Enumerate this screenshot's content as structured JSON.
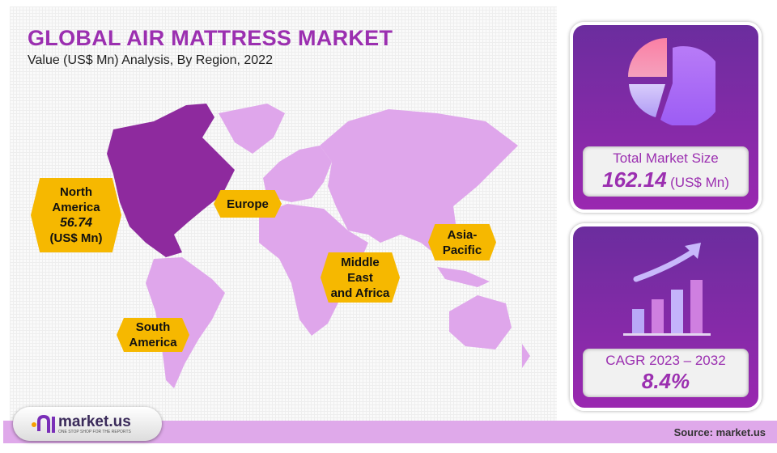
{
  "header": {
    "title": "GLOBAL AIR MATTRESS MARKET",
    "subtitle": "Value (US$ Mn) Analysis, By Region, 2022"
  },
  "colors": {
    "highlight_region": "#8e2a9e",
    "other_regions": "#dfa6eb",
    "label_bg": "#f6b800",
    "accent": "#9b2fb0"
  },
  "chart_data": {
    "type": "map",
    "title": "GLOBAL AIR MATTRESS MARKET",
    "subtitle": "Value (US$ Mn) Analysis, By Region, 2022",
    "regions": [
      {
        "name": "North America",
        "value": 56.74,
        "unit": "(US$ Mn)",
        "highlighted": true
      },
      {
        "name": "Europe"
      },
      {
        "name": "Middle East and Africa"
      },
      {
        "name": "Asia-Pacific"
      },
      {
        "name": "South America"
      }
    ]
  },
  "labels": {
    "na": {
      "l1": "North",
      "l2": "America",
      "value": "56.74",
      "unit": "(US$ Mn)"
    },
    "eu": "Europe",
    "mea": {
      "l1": "Middle",
      "l2": "East",
      "l3": "and Africa"
    },
    "apac": {
      "l1": "Asia-",
      "l2": "Pacific"
    },
    "sa": {
      "l1": "South",
      "l2": "America"
    }
  },
  "panels": {
    "market": {
      "icon": "pie-chart-icon",
      "label": "Total Market Size",
      "value": "162.14",
      "unit": "(US$ Mn)"
    },
    "cagr": {
      "icon": "growth-bar-chart-icon",
      "label": "CAGR 2023 – 2032",
      "value": "8.4%"
    }
  },
  "footer": {
    "logo_text": "market.us",
    "logo_tagline": "ONE STOP SHOP FOR THE REPORTS",
    "source": "Source: market.us"
  }
}
